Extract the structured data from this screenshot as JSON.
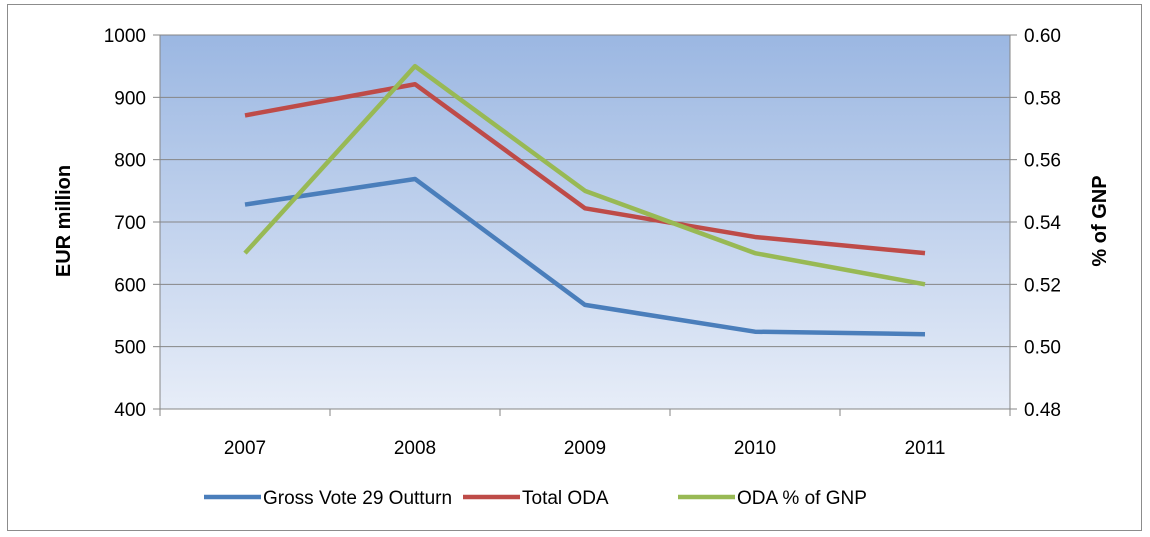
{
  "chart_data": {
    "type": "line",
    "categories": [
      "2007",
      "2008",
      "2009",
      "2010",
      "2011"
    ],
    "ylabel": "EUR million",
    "ylabel_right": "% of GNP",
    "ylim": [
      400,
      1000
    ],
    "y_ticks": [
      "400",
      "500",
      "600",
      "700",
      "800",
      "900",
      "1000"
    ],
    "ylim_right": [
      0.48,
      0.6
    ],
    "y_ticks_right": [
      "0.48",
      "0.50",
      "0.52",
      "0.54",
      "0.56",
      "0.58",
      "0.60"
    ],
    "grid": true,
    "legend_position": "bottom",
    "series": [
      {
        "name": "Gross Vote 29 Outturn",
        "axis": "left",
        "color": "#4a7ebb",
        "values": [
          728,
          769,
          567,
          524,
          520
        ]
      },
      {
        "name": "Total ODA",
        "axis": "left",
        "color": "#be4b48",
        "values": [
          871,
          921,
          722,
          676,
          650
        ]
      },
      {
        "name": "ODA % of GNP",
        "axis": "right",
        "color": "#98b954",
        "values": [
          0.53,
          0.59,
          0.55,
          0.53,
          0.52
        ]
      }
    ]
  }
}
